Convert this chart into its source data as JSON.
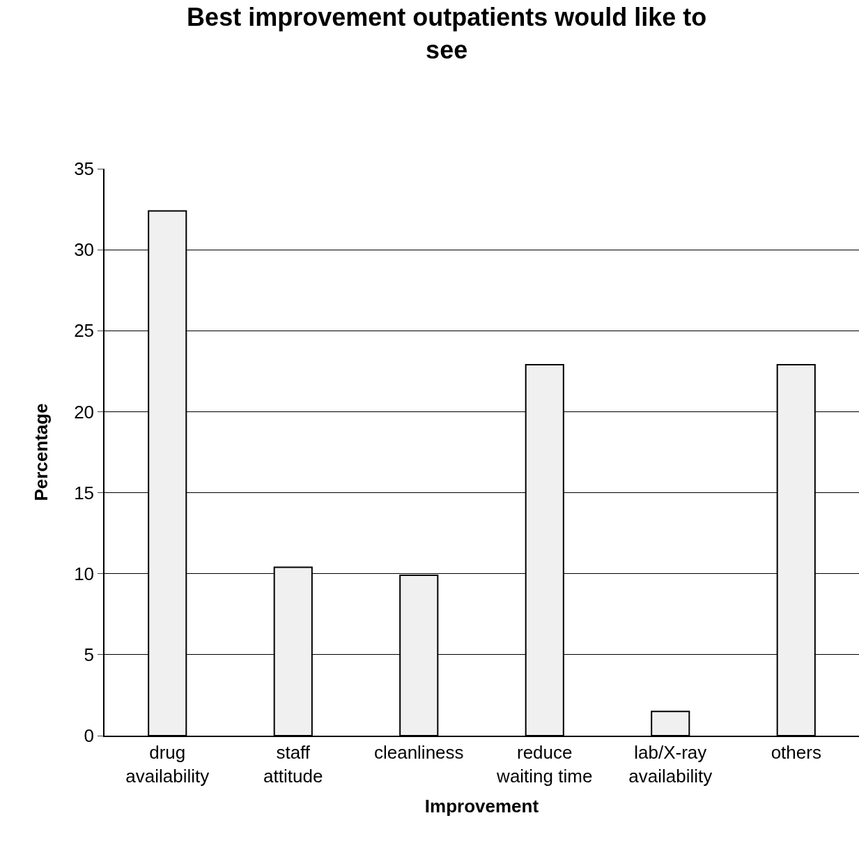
{
  "chart_data": {
    "type": "bar",
    "title": "Best improvement outpatients would like to\nsee",
    "xlabel": "Improvement",
    "ylabel": "Percentage",
    "categories": [
      "drug\navailability",
      "staff\nattitude",
      "cleanliness",
      "reduce\nwaiting time",
      "lab/X-ray\navailability",
      "others"
    ],
    "values": [
      32.4,
      10.4,
      9.9,
      22.9,
      1.5,
      22.9
    ],
    "color": "#f0f0f0",
    "ylim": [
      0,
      35
    ],
    "yticks": [
      0,
      5,
      10,
      15,
      20,
      25,
      30,
      35
    ],
    "grid": "y",
    "legend": false
  }
}
